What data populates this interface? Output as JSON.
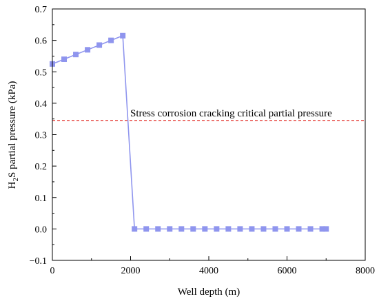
{
  "chart_data": {
    "type": "line",
    "title": "",
    "xlabel": "Well depth (m)",
    "ylabel": {
      "prefix": "H",
      "subscript": "2",
      "suffix": "S partial pressure (kPa)"
    },
    "xlim": [
      0,
      8000
    ],
    "ylim": [
      -0.1,
      0.7
    ],
    "xticks": [
      0,
      2000,
      4000,
      6000,
      8000
    ],
    "xtick_labels": [
      "0",
      "2000",
      "4000",
      "6000",
      "8000"
    ],
    "yticks": [
      -0.1,
      0.0,
      0.1,
      0.2,
      0.3,
      0.4,
      0.5,
      0.6,
      0.7
    ],
    "ytick_labels": [
      "−0.1",
      "0.0",
      "0.1",
      "0.2",
      "0.3",
      "0.4",
      "0.5",
      "0.6",
      "0.7"
    ],
    "grid": false,
    "legend": "none",
    "series": [
      {
        "color": "#8f95ee",
        "marker": "square",
        "x": [
          0,
          300,
          600,
          900,
          1200,
          1500,
          1800,
          2100,
          2400,
          2700,
          3000,
          3300,
          3600,
          3900,
          4200,
          4500,
          4800,
          5100,
          5400,
          5700,
          6000,
          6300,
          6600,
          6900,
          7000
        ],
        "y": [
          0.525,
          0.54,
          0.555,
          0.57,
          0.585,
          0.6,
          0.615,
          0.0,
          0.0,
          0.0,
          0.0,
          0.0,
          0.0,
          0.0,
          0.0,
          0.0,
          0.0,
          0.0,
          0.0,
          0.0,
          0.0,
          0.0,
          0.0,
          0.0,
          0.0
        ]
      }
    ],
    "reference_line": {
      "y": 0.345,
      "color": "#e0201b",
      "style": "dashed",
      "label": "Stress corrosion cracking critical partial pressure"
    }
  }
}
